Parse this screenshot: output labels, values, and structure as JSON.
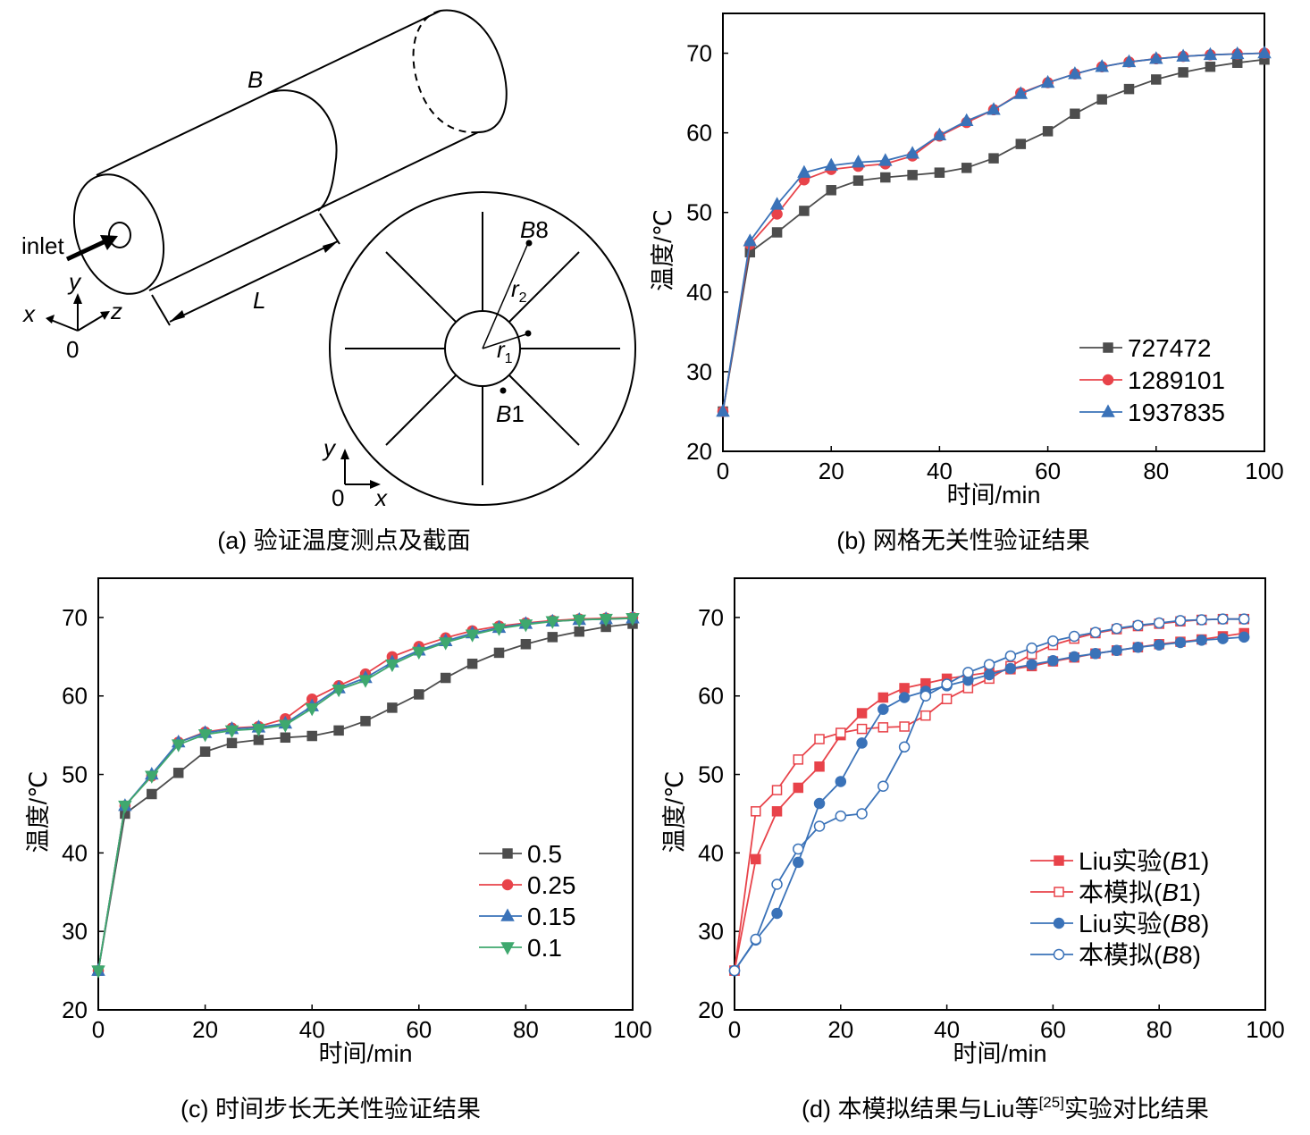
{
  "panel_a": {
    "caption": "(a) 验证温度测点及截面",
    "label_B": "B",
    "label_inlet": "inlet",
    "label_L": "L",
    "axis_x": "x",
    "axis_y": "y",
    "axis_z": "z",
    "origin": "0",
    "section": {
      "point_B8_letter": "B",
      "point_B8_num": "8",
      "point_B1_letter": "B",
      "point_B1_num": "1",
      "r_letter": "r",
      "r1_sub": "1",
      "r2_sub": "2",
      "axis_x": "x",
      "axis_y": "y",
      "origin": "0"
    }
  },
  "chart_data": [
    {
      "id": "b",
      "type": "line",
      "caption": "(b) 网格无关性验证结果",
      "xlabel": "时间/min",
      "ylabel": "温度/℃",
      "xlim": [
        0,
        100
      ],
      "ylim": [
        20,
        75
      ],
      "xticks": [
        0,
        20,
        40,
        60,
        80,
        100
      ],
      "yticks": [
        20,
        30,
        40,
        50,
        60,
        70
      ],
      "legend_position": "bottom-right",
      "series": [
        {
          "name": "727472",
          "color": "#4d4d4d",
          "marker": "square",
          "x": [
            0,
            5,
            10,
            15,
            20,
            25,
            30,
            35,
            40,
            45,
            50,
            55,
            60,
            65,
            70,
            75,
            80,
            85,
            90,
            95,
            100
          ],
          "y": [
            25,
            45,
            47.5,
            50.2,
            52.8,
            54,
            54.4,
            54.7,
            55,
            55.6,
            56.8,
            58.6,
            60.2,
            62.4,
            64.2,
            65.5,
            66.7,
            67.6,
            68.3,
            68.8,
            69.2
          ]
        },
        {
          "name": "1289101",
          "color": "#e8434a",
          "marker": "circle",
          "x": [
            0,
            5,
            10,
            15,
            20,
            25,
            30,
            35,
            40,
            45,
            50,
            55,
            60,
            65,
            70,
            75,
            80,
            85,
            90,
            95,
            100
          ],
          "y": [
            25,
            46,
            49.8,
            54.1,
            55.4,
            55.8,
            56.1,
            57.1,
            59.6,
            61.3,
            62.9,
            65,
            66.3,
            67.4,
            68.3,
            68.9,
            69.3,
            69.6,
            69.8,
            69.9,
            70
          ]
        },
        {
          "name": "1937835",
          "color": "#3a72b8",
          "marker": "triangle-up",
          "x": [
            0,
            5,
            10,
            15,
            20,
            25,
            30,
            35,
            40,
            45,
            50,
            55,
            60,
            65,
            70,
            75,
            80,
            85,
            90,
            95,
            100
          ],
          "y": [
            25,
            46.4,
            51,
            55,
            55.9,
            56.3,
            56.5,
            57.4,
            59.7,
            61.5,
            62.9,
            64.9,
            66.3,
            67.4,
            68.3,
            68.9,
            69.3,
            69.6,
            69.8,
            69.9,
            70
          ]
        }
      ]
    },
    {
      "id": "c",
      "type": "line",
      "caption": "(c) 时间步长无关性验证结果",
      "xlabel": "时间/min",
      "ylabel": "温度/℃",
      "xlim": [
        0,
        100
      ],
      "ylim": [
        20,
        75
      ],
      "xticks": [
        0,
        20,
        40,
        60,
        80,
        100
      ],
      "yticks": [
        20,
        30,
        40,
        50,
        60,
        70
      ],
      "legend_position": "bottom-right",
      "series": [
        {
          "name": "0.5",
          "color": "#4d4d4d",
          "marker": "square",
          "x": [
            0,
            5,
            10,
            15,
            20,
            25,
            30,
            35,
            40,
            45,
            50,
            55,
            60,
            65,
            70,
            75,
            80,
            85,
            90,
            95,
            100
          ],
          "y": [
            25,
            45,
            47.5,
            50.2,
            52.9,
            54,
            54.4,
            54.7,
            54.9,
            55.6,
            56.8,
            58.5,
            60.2,
            62.3,
            64.1,
            65.5,
            66.6,
            67.5,
            68.2,
            68.8,
            69.2
          ]
        },
        {
          "name": "0.25",
          "color": "#e8434a",
          "marker": "circle",
          "x": [
            0,
            5,
            10,
            15,
            20,
            25,
            30,
            35,
            40,
            45,
            50,
            55,
            60,
            65,
            70,
            75,
            80,
            85,
            90,
            95,
            100
          ],
          "y": [
            25,
            46,
            49.8,
            54.1,
            55.4,
            55.9,
            56.1,
            57.1,
            59.6,
            61.3,
            62.8,
            65,
            66.3,
            67.4,
            68.3,
            68.9,
            69.3,
            69.6,
            69.8,
            69.9,
            70
          ]
        },
        {
          "name": "0.15",
          "color": "#3a72b8",
          "marker": "triangle-up",
          "x": [
            0,
            5,
            10,
            15,
            20,
            25,
            30,
            35,
            40,
            45,
            50,
            55,
            60,
            65,
            70,
            75,
            80,
            85,
            90,
            95,
            100
          ],
          "y": [
            25,
            46,
            50,
            54.1,
            55.3,
            55.8,
            56,
            56.5,
            58.7,
            61,
            62.3,
            64.3,
            65.8,
            67,
            68,
            68.7,
            69.2,
            69.5,
            69.7,
            69.8,
            69.9
          ]
        },
        {
          "name": "0.1",
          "color": "#3fa86e",
          "marker": "triangle-down",
          "x": [
            0,
            5,
            10,
            15,
            20,
            25,
            30,
            35,
            40,
            45,
            50,
            55,
            60,
            65,
            70,
            75,
            80,
            85,
            90,
            95,
            100
          ],
          "y": [
            25,
            46,
            49.8,
            53.8,
            55.1,
            55.6,
            55.8,
            56.3,
            58.4,
            60.8,
            62,
            64,
            65.6,
            66.8,
            67.8,
            68.6,
            69.1,
            69.5,
            69.7,
            69.8,
            69.9
          ]
        }
      ]
    },
    {
      "id": "d",
      "type": "line",
      "caption_part1": "(d) 本模拟结果与Liu等",
      "caption_ref": "[25]",
      "caption_part2": "实验对比结果",
      "xlabel": "时间/min",
      "ylabel": "温度/℃",
      "xlim": [
        0,
        100
      ],
      "ylim": [
        20,
        75
      ],
      "xticks": [
        0,
        20,
        40,
        60,
        80,
        100
      ],
      "yticks": [
        20,
        30,
        40,
        50,
        60,
        70
      ],
      "legend_position": "bottom-right",
      "series": [
        {
          "name": "Liu实验(B1)",
          "name_pre": "Liu实验(",
          "name_it": "B",
          "name_post": "1)",
          "color": "#e8434a",
          "marker": "square",
          "filled": true,
          "x": [
            0,
            4,
            8,
            12,
            16,
            20,
            24,
            28,
            32,
            36,
            40,
            44,
            48,
            52,
            56,
            60,
            64,
            68,
            72,
            76,
            80,
            84,
            88,
            92,
            96
          ],
          "y": [
            25,
            39.2,
            45.3,
            48.3,
            51,
            55,
            57.8,
            59.8,
            61,
            61.6,
            62.2,
            62.6,
            63,
            63.4,
            63.8,
            64.4,
            64.9,
            65.4,
            65.8,
            66.2,
            66.6,
            66.9,
            67.2,
            67.6,
            68
          ]
        },
        {
          "name": "本模拟(B1)",
          "name_pre": "本模拟(",
          "name_it": "B",
          "name_post": "1)",
          "color": "#e8434a",
          "marker": "square",
          "filled": false,
          "x": [
            0,
            4,
            8,
            12,
            16,
            20,
            24,
            28,
            32,
            36,
            40,
            44,
            48,
            52,
            56,
            60,
            64,
            68,
            72,
            76,
            80,
            84,
            88,
            92,
            96
          ],
          "y": [
            25,
            45.3,
            48,
            51.9,
            54.5,
            55.3,
            55.8,
            56,
            56.1,
            57.5,
            59.6,
            61,
            62.2,
            63.8,
            65.3,
            66.5,
            67.3,
            68,
            68.5,
            68.9,
            69.2,
            69.5,
            69.7,
            69.8,
            69.8
          ]
        },
        {
          "name": "Liu实验(B8)",
          "name_pre": "Liu实验(",
          "name_it": "B",
          "name_post": "8)",
          "color": "#3a72b8",
          "marker": "circle",
          "filled": true,
          "x": [
            0,
            4,
            8,
            12,
            16,
            20,
            24,
            28,
            32,
            36,
            40,
            44,
            48,
            52,
            56,
            60,
            64,
            68,
            72,
            76,
            80,
            84,
            88,
            92,
            96
          ],
          "y": [
            25,
            28.9,
            32.3,
            38.8,
            46.3,
            49.1,
            54,
            58.3,
            59.8,
            60.6,
            61.3,
            62,
            62.7,
            63.5,
            64,
            64.5,
            65,
            65.4,
            65.8,
            66.2,
            66.5,
            66.8,
            67.1,
            67.3,
            67.5
          ]
        },
        {
          "name": "本模拟(B8)",
          "name_pre": "本模拟(",
          "name_it": "B",
          "name_post": "8)",
          "color": "#3a72b8",
          "marker": "circle",
          "filled": false,
          "x": [
            0,
            4,
            8,
            12,
            16,
            20,
            24,
            28,
            32,
            36,
            40,
            44,
            48,
            52,
            56,
            60,
            64,
            68,
            72,
            76,
            80,
            84,
            88,
            92,
            96
          ],
          "y": [
            25,
            29,
            36,
            40.5,
            43.4,
            44.7,
            45,
            48.5,
            53.5,
            60,
            61.5,
            63,
            64,
            65.1,
            66.1,
            67,
            67.6,
            68.1,
            68.6,
            69,
            69.3,
            69.6,
            69.7,
            69.8,
            69.8
          ]
        }
      ]
    }
  ]
}
